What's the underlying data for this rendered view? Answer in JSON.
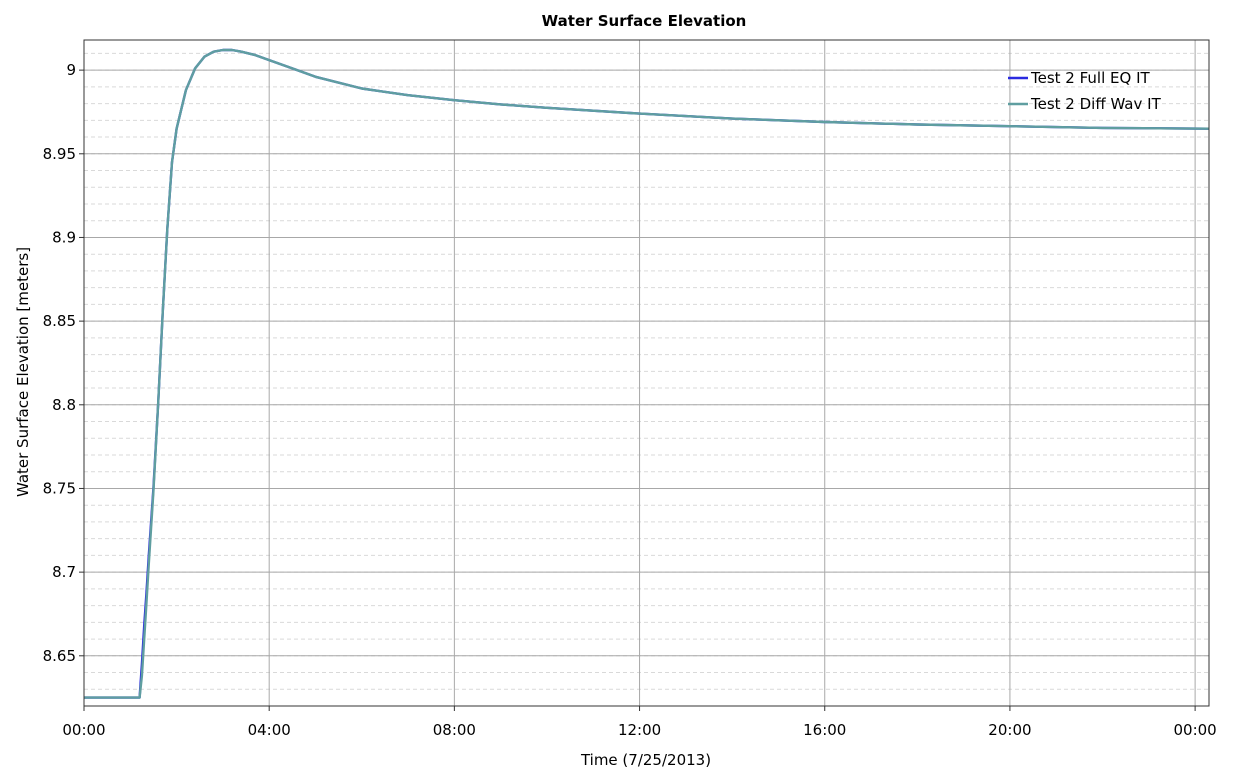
{
  "chart_data": {
    "type": "line",
    "title": "Water Surface Elevation",
    "xlabel": "Time (7/25/2013)",
    "ylabel": "Water Surface Elevation [meters]",
    "x_unit": "hours",
    "xlim": [
      0,
      24.3
    ],
    "ylim": [
      8.62,
      9.018
    ],
    "x_ticks": [
      {
        "value": 0,
        "label": "00:00"
      },
      {
        "value": 4,
        "label": "04:00"
      },
      {
        "value": 8,
        "label": "08:00"
      },
      {
        "value": 12,
        "label": "12:00"
      },
      {
        "value": 16,
        "label": "16:00"
      },
      {
        "value": 20,
        "label": "20:00"
      },
      {
        "value": 24,
        "label": "00:00"
      }
    ],
    "y_ticks": [
      {
        "value": 8.65,
        "label": "8.65"
      },
      {
        "value": 8.7,
        "label": "8.7"
      },
      {
        "value": 8.75,
        "label": "8.75"
      },
      {
        "value": 8.8,
        "label": "8.8"
      },
      {
        "value": 8.85,
        "label": "8.85"
      },
      {
        "value": 8.9,
        "label": "8.9"
      },
      {
        "value": 8.95,
        "label": "8.95"
      },
      {
        "value": 9,
        "label": "9"
      }
    ],
    "y_minor_step": 0.01,
    "grid": true,
    "legend_position": "top-right",
    "series": [
      {
        "name": "Test 2 Full EQ IT",
        "color": "#2a2ae0",
        "x": [
          0,
          1.2,
          1.25,
          1.3,
          1.35,
          1.4,
          1.5,
          1.6,
          1.7,
          1.8,
          1.9,
          2.0,
          2.2,
          2.4,
          2.6,
          2.8,
          3.0,
          3.2,
          3.4,
          3.7,
          4.0,
          4.5,
          5.0,
          6.0,
          7.0,
          8.0,
          9.0,
          10.0,
          12.0,
          14.0,
          16.0,
          18.0,
          20.0,
          22.0,
          24.3
        ],
        "y": [
          8.625,
          8.625,
          8.645,
          8.668,
          8.688,
          8.71,
          8.75,
          8.8,
          8.855,
          8.905,
          8.945,
          8.965,
          8.988,
          9.001,
          9.008,
          9.011,
          9.012,
          9.012,
          9.011,
          9.009,
          9.006,
          9.001,
          8.996,
          8.989,
          8.985,
          8.982,
          8.9795,
          8.9775,
          8.974,
          8.971,
          8.969,
          8.9675,
          8.9665,
          8.9655,
          8.965
        ]
      },
      {
        "name": "Test 2 Diff Wav IT",
        "color": "#5f9ea0",
        "x": [
          0,
          1.2,
          1.25,
          1.3,
          1.35,
          1.4,
          1.5,
          1.6,
          1.7,
          1.8,
          1.9,
          2.0,
          2.2,
          2.4,
          2.6,
          2.8,
          3.0,
          3.2,
          3.4,
          3.7,
          4.0,
          4.5,
          5.0,
          6.0,
          7.0,
          8.0,
          9.0,
          10.0,
          12.0,
          14.0,
          16.0,
          18.0,
          20.0,
          22.0,
          24.3
        ],
        "y": [
          8.625,
          8.625,
          8.638,
          8.66,
          8.682,
          8.705,
          8.748,
          8.8,
          8.855,
          8.905,
          8.945,
          8.965,
          8.988,
          9.001,
          9.008,
          9.011,
          9.012,
          9.012,
          9.011,
          9.009,
          9.006,
          9.001,
          8.996,
          8.989,
          8.985,
          8.982,
          8.9795,
          8.9775,
          8.974,
          8.971,
          8.969,
          8.9675,
          8.9665,
          8.9655,
          8.965
        ]
      }
    ]
  }
}
